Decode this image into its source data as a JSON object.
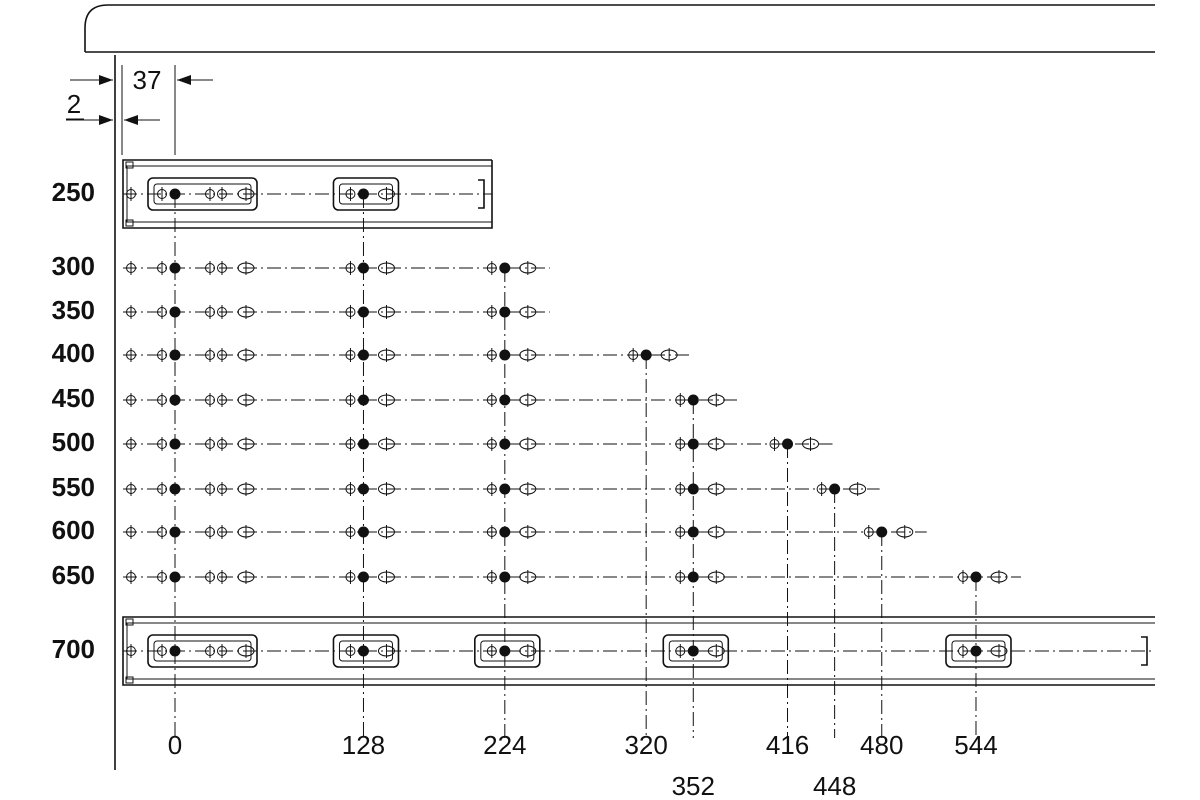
{
  "dimensions": {
    "offset": 37,
    "inset": 2
  },
  "rows": [
    250,
    300,
    350,
    400,
    450,
    500,
    550,
    600,
    650,
    700
  ],
  "columns": [
    0,
    128,
    224,
    320,
    352,
    416,
    448,
    480,
    544
  ]
}
